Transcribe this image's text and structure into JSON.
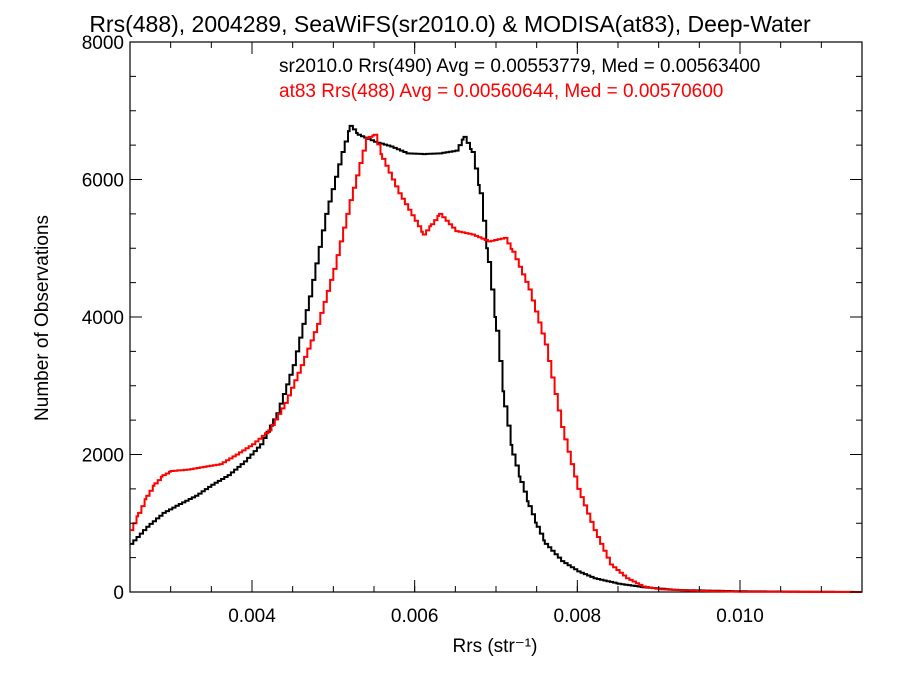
{
  "chart_data": {
    "type": "line",
    "title": "Rrs(488), 2004289, SeaWiFS(sr2010.0) & MODISA(at83), Deep-Water",
    "xlabel": "Rrs (str⁻¹)",
    "ylabel": "Number of Observations",
    "xlim": [
      0.0025,
      0.0115
    ],
    "ylim": [
      0,
      8000
    ],
    "xticks": [
      0.004,
      0.006,
      0.008,
      0.01
    ],
    "xtick_labels": [
      "0.004",
      "0.006",
      "0.008",
      "0.010"
    ],
    "yticks": [
      0,
      2000,
      4000,
      6000,
      8000
    ],
    "ytick_labels": [
      "0",
      "2000",
      "4000",
      "6000",
      "8000"
    ],
    "grid": false,
    "legend_position": "top-right",
    "series": [
      {
        "name": "sr2010.0 Rrs(490) Avg = 0.00553779, Med = 0.00563400",
        "color": "#000000",
        "points": [
          [
            0.0025,
            700
          ],
          [
            0.0027,
            950
          ],
          [
            0.0029,
            1150
          ],
          [
            0.0031,
            1280
          ],
          [
            0.0033,
            1400
          ],
          [
            0.0035,
            1560
          ],
          [
            0.0037,
            1700
          ],
          [
            0.0039,
            1900
          ],
          [
            0.0041,
            2150
          ],
          [
            0.0043,
            2600
          ],
          [
            0.0045,
            3300
          ],
          [
            0.0047,
            4300
          ],
          [
            0.0049,
            5500
          ],
          [
            0.0051,
            6400
          ],
          [
            0.0052,
            6780
          ],
          [
            0.0053,
            6650
          ],
          [
            0.0055,
            6550
          ],
          [
            0.0057,
            6480
          ],
          [
            0.0059,
            6380
          ],
          [
            0.0061,
            6370
          ],
          [
            0.0063,
            6380
          ],
          [
            0.0065,
            6420
          ],
          [
            0.0066,
            6620
          ],
          [
            0.0067,
            6400
          ],
          [
            0.0068,
            5800
          ],
          [
            0.0069,
            4800
          ],
          [
            0.007,
            3800
          ],
          [
            0.0071,
            2700
          ],
          [
            0.0072,
            2000
          ],
          [
            0.0073,
            1600
          ],
          [
            0.0074,
            1250
          ],
          [
            0.0075,
            950
          ],
          [
            0.0076,
            700
          ],
          [
            0.0078,
            450
          ],
          [
            0.008,
            300
          ],
          [
            0.0082,
            200
          ],
          [
            0.0085,
            120
          ],
          [
            0.0088,
            70
          ],
          [
            0.0092,
            30
          ],
          [
            0.01,
            10
          ],
          [
            0.011,
            3
          ],
          [
            0.0115,
            0
          ]
        ]
      },
      {
        "name": "at83 Rrs(488) Avg = 0.00560644, Med = 0.00570600",
        "color": "#ff0000",
        "points": [
          [
            0.0025,
            900
          ],
          [
            0.0026,
            1150
          ],
          [
            0.0027,
            1400
          ],
          [
            0.0028,
            1580
          ],
          [
            0.0029,
            1700
          ],
          [
            0.003,
            1760
          ],
          [
            0.0032,
            1780
          ],
          [
            0.0034,
            1820
          ],
          [
            0.0036,
            1860
          ],
          [
            0.0038,
            2000
          ],
          [
            0.004,
            2150
          ],
          [
            0.0042,
            2350
          ],
          [
            0.0044,
            2750
          ],
          [
            0.0046,
            3300
          ],
          [
            0.0048,
            3900
          ],
          [
            0.005,
            4700
          ],
          [
            0.0052,
            5700
          ],
          [
            0.0054,
            6600
          ],
          [
            0.0055,
            6650
          ],
          [
            0.0056,
            6300
          ],
          [
            0.0058,
            5800
          ],
          [
            0.006,
            5400
          ],
          [
            0.0061,
            5200
          ],
          [
            0.0062,
            5350
          ],
          [
            0.0063,
            5500
          ],
          [
            0.0065,
            5250
          ],
          [
            0.0067,
            5200
          ],
          [
            0.0069,
            5100
          ],
          [
            0.0071,
            5150
          ],
          [
            0.0072,
            4950
          ],
          [
            0.0074,
            4400
          ],
          [
            0.0076,
            3600
          ],
          [
            0.0078,
            2400
          ],
          [
            0.008,
            1500
          ],
          [
            0.0082,
            900
          ],
          [
            0.0084,
            400
          ],
          [
            0.0086,
            200
          ],
          [
            0.0088,
            80
          ],
          [
            0.009,
            40
          ],
          [
            0.0095,
            15
          ],
          [
            0.01,
            5
          ],
          [
            0.011,
            0
          ],
          [
            0.0115,
            0
          ]
        ]
      }
    ]
  }
}
